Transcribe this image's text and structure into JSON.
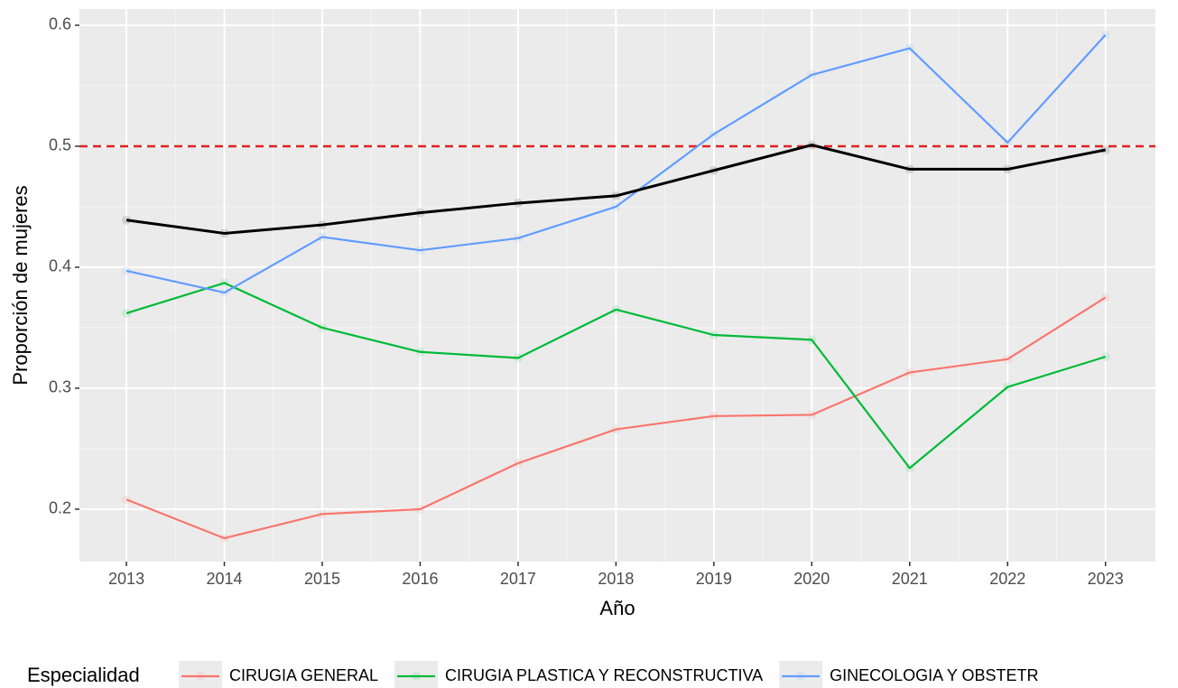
{
  "chart_data": {
    "type": "line",
    "xlabel": "Año",
    "ylabel": "Proporción de mujeres",
    "legend_title": "Especialidad",
    "x": [
      2013,
      2014,
      2015,
      2016,
      2017,
      2018,
      2019,
      2020,
      2021,
      2022,
      2023
    ],
    "series": [
      {
        "name": "CIRUGIA GENERAL",
        "color": "#f8766d",
        "values": [
          0.208,
          0.176,
          0.196,
          0.2,
          0.238,
          0.266,
          0.277,
          0.278,
          0.313,
          0.324,
          0.375
        ]
      },
      {
        "name": "CIRUGIA PLASTICA Y RECONSTRUCTIVA",
        "color": "#00ba38",
        "values": [
          0.362,
          0.387,
          0.35,
          0.33,
          0.325,
          0.365,
          0.344,
          0.34,
          0.234,
          0.301,
          0.326
        ]
      },
      {
        "name": "GINECOLOGIA Y OBSTETR",
        "color": "#619cff",
        "values": [
          0.397,
          0.379,
          0.425,
          0.414,
          0.424,
          0.45,
          0.51,
          0.559,
          0.581,
          0.503,
          0.592
        ]
      },
      {
        "color": "#000000",
        "values": [
          0.439,
          0.428,
          0.435,
          0.445,
          0.453,
          0.459,
          0.48,
          0.501,
          0.481,
          0.481,
          0.497
        ]
      }
    ],
    "reference_line": {
      "value": 0.5,
      "color": "#e0211d"
    },
    "xlim": [
      2012.52,
      2023.51
    ],
    "xticks": [
      2013,
      2014,
      2015,
      2016,
      2017,
      2018,
      2019,
      2020,
      2021,
      2022,
      2023
    ],
    "ylim": [
      0.1567,
      0.6134
    ],
    "yticks": [
      0.2,
      0.3,
      0.4,
      0.5,
      0.6
    ],
    "grid": true,
    "legend_position": "bottom"
  }
}
